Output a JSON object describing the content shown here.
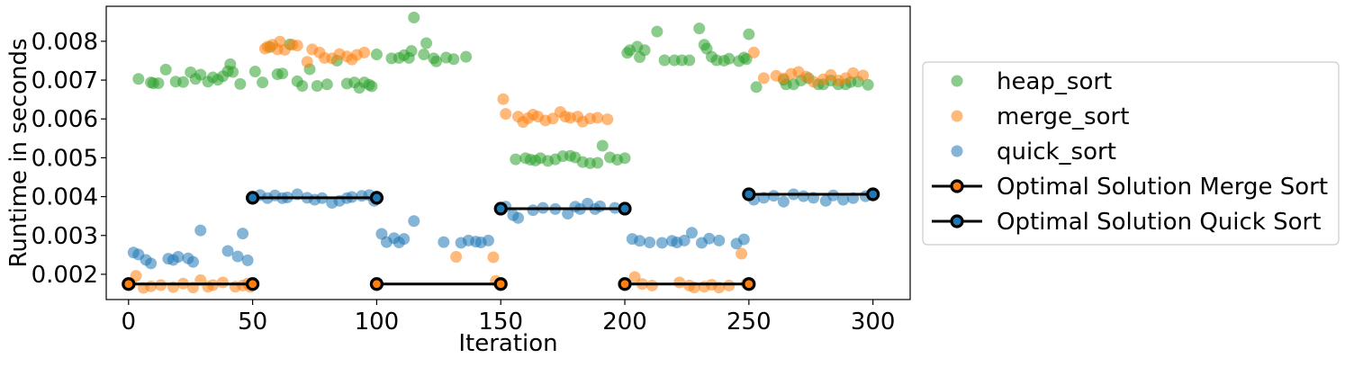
{
  "chart_data": {
    "type": "scatter",
    "title": "",
    "xlabel": "Iteration",
    "ylabel": "Runtime in seconds",
    "xlim": [
      -9,
      315
    ],
    "ylim": [
      0.00135,
      0.0089
    ],
    "xticks": [
      0,
      50,
      100,
      150,
      200,
      250,
      300
    ],
    "xtick_labels": [
      "0",
      "50",
      "100",
      "150",
      "200",
      "250",
      "300"
    ],
    "yticks": [
      0.002,
      0.003,
      0.004,
      0.005,
      0.006,
      0.007,
      0.008
    ],
    "ytick_labels": [
      "0.002",
      "0.003",
      "0.004",
      "0.005",
      "0.006",
      "0.007",
      "0.008"
    ],
    "grid": false,
    "legend_position": "right",
    "series": [
      {
        "name": "heap_sort",
        "kind": "scatter",
        "color": "#2ca02c",
        "x": [
          4,
          9,
          10,
          12,
          15,
          19,
          22,
          25,
          27,
          29,
          32,
          34,
          36,
          38,
          40,
          41,
          42,
          45,
          51,
          54,
          57,
          60,
          62,
          65,
          68,
          70,
          73,
          76,
          80,
          84,
          88,
          91,
          93,
          95,
          97,
          98,
          100,
          106,
          109,
          111,
          113,
          114,
          115,
          119,
          120,
          123,
          124,
          128,
          131,
          136,
          156,
          160,
          162,
          164,
          166,
          169,
          172,
          175,
          178,
          180,
          183,
          186,
          189,
          191,
          194,
          197,
          200,
          201,
          202,
          205,
          206,
          208,
          213,
          216,
          220,
          223,
          226,
          230,
          232,
          233,
          235,
          237,
          240,
          242,
          246,
          248,
          249,
          250,
          253,
          264,
          265,
          268,
          271,
          274,
          278,
          280,
          283,
          286,
          289,
          291,
          294,
          298
        ],
        "y": [
          0.00703,
          0.00694,
          0.00692,
          0.00692,
          0.00727,
          0.00696,
          0.00695,
          0.0072,
          0.00703,
          0.00714,
          0.00696,
          0.00707,
          0.00701,
          0.0071,
          0.00723,
          0.00741,
          0.00721,
          0.0069,
          0.00722,
          0.00694,
          0.00785,
          0.00715,
          0.00717,
          0.00792,
          0.00697,
          0.00685,
          0.00728,
          0.00685,
          0.00689,
          0.0075,
          0.00691,
          0.00694,
          0.0068,
          0.00694,
          0.00688,
          0.00684,
          0.00766,
          0.00756,
          0.00757,
          0.00764,
          0.00757,
          0.00775,
          0.00861,
          0.00766,
          0.00795,
          0.00756,
          0.00748,
          0.00758,
          0.00754,
          0.0076,
          0.00496,
          0.00499,
          0.00495,
          0.00493,
          0.00499,
          0.00492,
          0.00496,
          0.00504,
          0.00505,
          0.00501,
          0.00489,
          0.00486,
          0.00487,
          0.00531,
          0.00501,
          0.00495,
          0.00499,
          0.0077,
          0.00777,
          0.00786,
          0.00759,
          0.00777,
          0.00825,
          0.00751,
          0.00751,
          0.00751,
          0.00751,
          0.00833,
          0.00791,
          0.00781,
          0.0076,
          0.00751,
          0.0075,
          0.00755,
          0.00749,
          0.00758,
          0.00754,
          0.00818,
          0.00682,
          0.00701,
          0.00689,
          0.00689,
          0.00699,
          0.00705,
          0.00689,
          0.00689,
          0.00699,
          0.00689,
          0.00689,
          0.00695,
          0.00696,
          0.00688
        ]
      },
      {
        "name": "merge_sort",
        "kind": "scatter",
        "color": "#ff7f0e",
        "x": [
          1,
          3,
          6,
          9,
          13,
          18,
          22,
          26,
          29,
          32,
          34,
          38,
          43,
          46,
          48,
          49,
          55,
          56,
          58,
          60,
          61,
          63,
          66,
          68,
          72,
          74,
          77,
          79,
          82,
          85,
          88,
          90,
          92,
          95,
          132,
          147,
          148,
          151,
          152,
          157,
          159,
          161,
          163,
          165,
          168,
          171,
          174,
          176,
          178,
          181,
          183,
          186,
          189,
          193,
          204,
          207,
          211,
          222,
          226,
          228,
          232,
          235,
          238,
          242,
          247,
          249,
          252,
          256,
          261,
          264,
          267,
          270,
          273,
          276,
          280,
          283,
          286,
          289,
          292,
          296
        ],
        "y": [
          0.00176,
          0.00196,
          0.00165,
          0.00169,
          0.00172,
          0.00167,
          0.00176,
          0.00166,
          0.00185,
          0.00168,
          0.00172,
          0.00179,
          0.00168,
          0.00171,
          0.00176,
          0.00168,
          0.00781,
          0.00786,
          0.00791,
          0.00779,
          0.00799,
          0.00778,
          0.00791,
          0.00789,
          0.00747,
          0.00779,
          0.00771,
          0.00757,
          0.00756,
          0.00767,
          0.00761,
          0.00753,
          0.00765,
          0.00771,
          0.00245,
          0.00244,
          0.00183,
          0.00651,
          0.00613,
          0.00606,
          0.00592,
          0.00602,
          0.00611,
          0.00606,
          0.00596,
          0.00601,
          0.00618,
          0.00606,
          0.00603,
          0.00606,
          0.00593,
          0.00601,
          0.00603,
          0.00599,
          0.00193,
          0.00175,
          0.00171,
          0.00179,
          0.00171,
          0.00166,
          0.00168,
          0.00173,
          0.00166,
          0.00171,
          0.00253,
          0.00176,
          0.00771,
          0.00705,
          0.00711,
          0.00704,
          0.00716,
          0.00721,
          0.00709,
          0.00696,
          0.00702,
          0.00713,
          0.00699,
          0.00705,
          0.00718,
          0.00712
        ]
      },
      {
        "name": "quick_sort",
        "kind": "scatter",
        "color": "#1f77b4",
        "x": [
          2,
          4,
          7,
          9,
          16,
          18,
          20,
          24,
          26,
          29,
          40,
          44,
          46,
          48,
          53,
          56,
          59,
          62,
          64,
          68,
          72,
          75,
          78,
          82,
          85,
          88,
          90,
          94,
          97,
          99,
          102,
          104,
          107,
          109,
          111,
          115,
          127,
          134,
          137,
          140,
          142,
          145,
          152,
          155,
          157,
          163,
          167,
          172,
          177,
          180,
          182,
          185,
          188,
          190,
          196,
          203,
          206,
          210,
          215,
          219,
          221,
          224,
          227,
          231,
          234,
          238,
          245,
          248,
          252,
          256,
          260,
          264,
          268,
          272,
          276,
          281,
          284,
          288,
          292,
          297
        ],
        "y": [
          0.00256,
          0.00251,
          0.00237,
          0.00228,
          0.0024,
          0.00237,
          0.00245,
          0.00241,
          0.00232,
          0.00313,
          0.0026,
          0.00246,
          0.00305,
          0.00236,
          0.00404,
          0.00396,
          0.00403,
          0.00396,
          0.00398,
          0.00406,
          0.00397,
          0.00392,
          0.00396,
          0.00384,
          0.00389,
          0.00396,
          0.00399,
          0.00402,
          0.00404,
          0.00389,
          0.00304,
          0.00283,
          0.00293,
          0.00282,
          0.00291,
          0.00337,
          0.00283,
          0.00281,
          0.00287,
          0.00284,
          0.00282,
          0.00287,
          0.00374,
          0.00352,
          0.00345,
          0.00365,
          0.00371,
          0.00368,
          0.00356,
          0.00374,
          0.00368,
          0.00382,
          0.00368,
          0.00375,
          0.00371,
          0.00291,
          0.00286,
          0.00282,
          0.00281,
          0.00286,
          0.00282,
          0.00287,
          0.00307,
          0.00281,
          0.00292,
          0.00287,
          0.00279,
          0.0029,
          0.00392,
          0.00397,
          0.00402,
          0.00387,
          0.00406,
          0.00401,
          0.00397,
          0.00389,
          0.00403,
          0.00392,
          0.00396,
          0.00401
        ]
      },
      {
        "name": "Optimal Solution Merge Sort",
        "kind": "line",
        "line_color": "#000000",
        "marker_face": "#ff7f0e",
        "segments": [
          {
            "x": [
              0,
              50
            ],
            "y": [
              0.00175,
              0.00175
            ]
          },
          {
            "x": [
              100,
              150
            ],
            "y": [
              0.00175,
              0.00175
            ]
          },
          {
            "x": [
              200,
              250
            ],
            "y": [
              0.00175,
              0.00175
            ]
          }
        ]
      },
      {
        "name": "Optimal Solution Quick Sort",
        "kind": "line",
        "line_color": "#000000",
        "marker_face": "#1f77b4",
        "segments": [
          {
            "x": [
              50,
              100
            ],
            "y": [
              0.00397,
              0.00397
            ]
          },
          {
            "x": [
              150,
              200
            ],
            "y": [
              0.00369,
              0.00369
            ]
          },
          {
            "x": [
              250,
              300
            ],
            "y": [
              0.00406,
              0.00406
            ]
          }
        ]
      }
    ]
  }
}
